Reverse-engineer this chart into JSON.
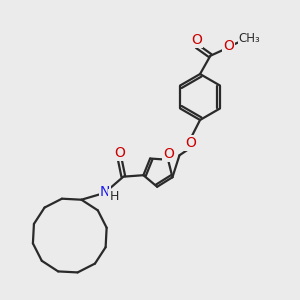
{
  "background_color": "#ebebeb",
  "bond_color": "#2a2a2a",
  "oxygen_color": "#cc0000",
  "nitrogen_color": "#1a1aee",
  "bond_width": 1.6,
  "figsize": [
    3.0,
    3.0
  ],
  "dpi": 100,
  "xlim": [
    0,
    10
  ],
  "ylim": [
    0,
    10
  ]
}
